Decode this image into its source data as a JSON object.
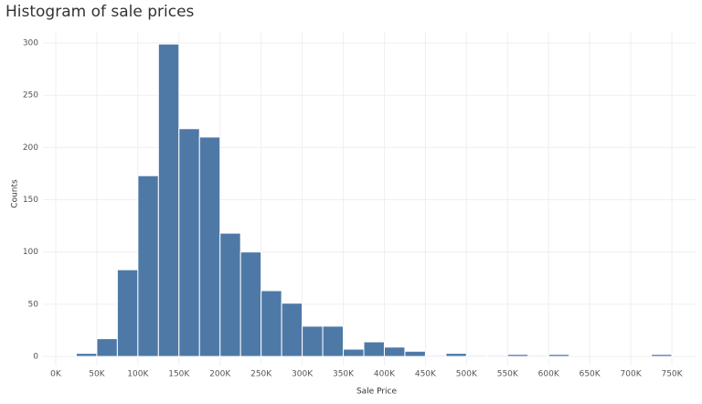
{
  "chart_data": {
    "type": "histogram",
    "title": "Histogram of sale prices",
    "x_label": "Sale Price",
    "y_label": "Counts",
    "color": "#4e79a7",
    "grid": true,
    "bins": [
      25000,
      50000,
      75000,
      100000,
      125000,
      150000,
      175000,
      200000,
      225000,
      250000,
      275000,
      300000,
      325000,
      350000,
      375000,
      400000,
      425000,
      450000,
      475000,
      500000,
      525000,
      550000,
      575000,
      600000,
      625000,
      650000,
      675000,
      700000,
      725000,
      750000
    ],
    "values": [
      3,
      17,
      83,
      173,
      299,
      218,
      210,
      118,
      100,
      63,
      51,
      29,
      29,
      7,
      14,
      9,
      5,
      1,
      3,
      1,
      1,
      2,
      1,
      2,
      0,
      0,
      0,
      0,
      2
    ],
    "xlim": [
      -20000,
      780000
    ],
    "ylim": [
      0,
      310
    ],
    "xticks": [
      {
        "value": 0,
        "label": "0K"
      },
      {
        "value": 50000,
        "label": "50K"
      },
      {
        "value": 100000,
        "label": "100K"
      },
      {
        "value": 150000,
        "label": "150K"
      },
      {
        "value": 200000,
        "label": "200K"
      },
      {
        "value": 250000,
        "label": "250K"
      },
      {
        "value": 300000,
        "label": "300K"
      },
      {
        "value": 350000,
        "label": "350K"
      },
      {
        "value": 400000,
        "label": "400K"
      },
      {
        "value": 450000,
        "label": "450K"
      },
      {
        "value": 500000,
        "label": "500K"
      },
      {
        "value": 550000,
        "label": "550K"
      },
      {
        "value": 600000,
        "label": "600K"
      },
      {
        "value": 650000,
        "label": "650K"
      },
      {
        "value": 700000,
        "label": "700K"
      },
      {
        "value": 750000,
        "label": "750K"
      }
    ],
    "yticks": [
      0,
      50,
      100,
      150,
      200,
      250,
      300
    ]
  }
}
